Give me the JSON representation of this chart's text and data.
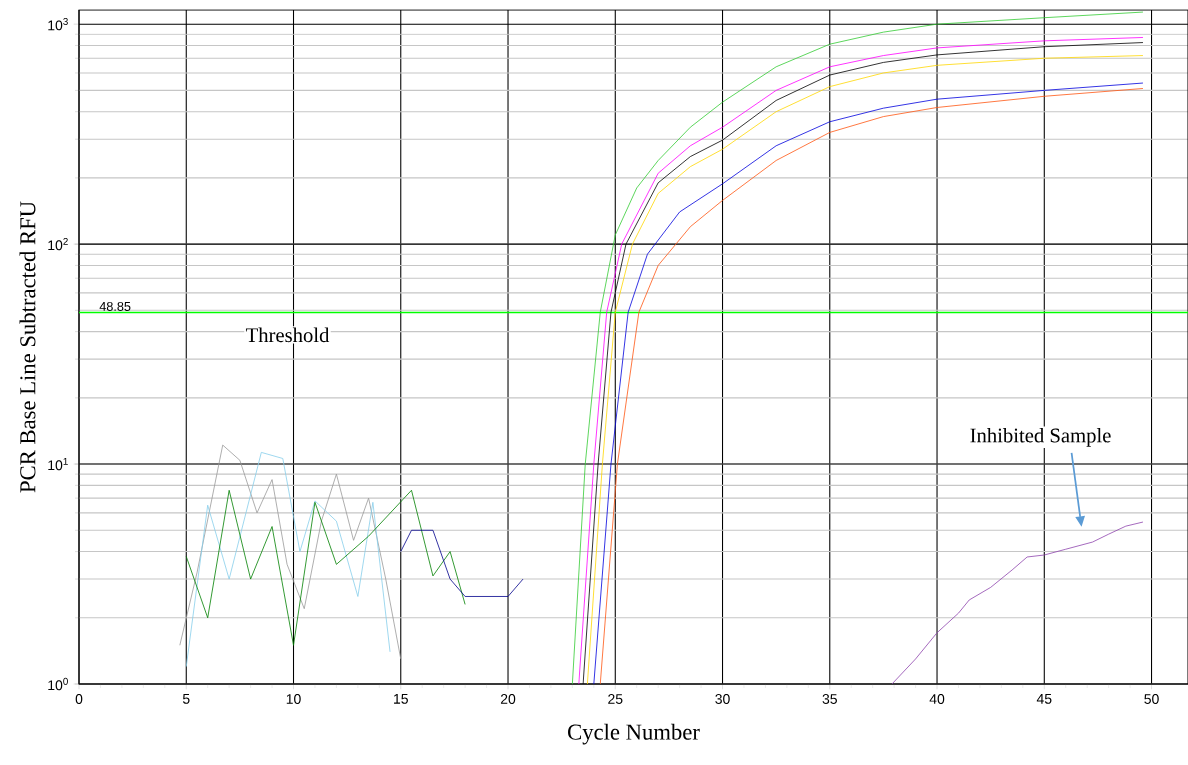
{
  "chart_data": {
    "type": "line",
    "xlabel": "Cycle Number",
    "ylabel": "PCR Base Line Subtracted RFU",
    "log": "y",
    "grid": true,
    "xlim": [
      0,
      51.7
    ],
    "ylim": [
      1,
      1160
    ],
    "xticks": [
      0,
      5,
      10,
      15,
      20,
      25,
      30,
      35,
      40,
      45,
      50
    ],
    "yticks": [
      {
        "value": 1,
        "label": "10$^{0}$"
      },
      {
        "value": 10,
        "label": "10$^{1}$"
      },
      {
        "value": 100,
        "label": "10$^{2}$"
      },
      {
        "value": 1000,
        "label": "10$^{3}$"
      }
    ],
    "ref_lines": [
      {
        "axis": "y",
        "value": 48.85,
        "label": "48.85",
        "color": "#00ff00"
      }
    ],
    "annotations": [
      "Threshold",
      "Inhibited Sample"
    ],
    "series": [
      {
        "color": "#33cc33",
        "x": [
          23.0,
          23.6,
          24.3,
          25,
          26,
          27,
          28.5,
          30,
          32.5,
          35,
          37.5,
          40,
          45,
          49.6
        ],
        "values": [
          1,
          10,
          49,
          110,
          180,
          240,
          340,
          442,
          640,
          811,
          920,
          1000,
          1070,
          1135
        ]
      },
      {
        "color": "#000000",
        "x": [
          23.5,
          24.2,
          24.8,
          25.5,
          27,
          28.5,
          30,
          32.5,
          35,
          37.5,
          40,
          45,
          49.6
        ],
        "values": [
          1,
          10,
          49,
          100,
          190,
          250,
          297,
          450,
          587,
          670,
          725,
          790,
          825
        ]
      },
      {
        "color": "#ff00ff",
        "x": [
          23.3,
          24.0,
          24.6,
          25.3,
          27,
          28.5,
          30,
          32.5,
          35,
          37.5,
          40,
          45,
          49.6
        ],
        "values": [
          1,
          10,
          49,
          100,
          210,
          280,
          340,
          500,
          640,
          720,
          780,
          840,
          870
        ]
      },
      {
        "color": "#ffd700",
        "x": [
          23.7,
          24.4,
          25.0,
          25.8,
          27,
          28.5,
          30,
          32.5,
          35,
          37.5,
          40,
          45,
          49.6
        ],
        "values": [
          1,
          10,
          49,
          100,
          170,
          225,
          270,
          400,
          520,
          600,
          650,
          700,
          720
        ]
      },
      {
        "color": "#0000dd",
        "x": [
          24.0,
          24.8,
          25.6,
          26.5,
          28,
          30,
          32.5,
          35,
          37.5,
          40,
          45,
          49.6
        ],
        "values": [
          1,
          10,
          49,
          90,
          140,
          188,
          280,
          360,
          415,
          456,
          500,
          540
        ]
      },
      {
        "color": "#ff5511",
        "x": [
          24.3,
          25.1,
          26.1,
          27,
          28.5,
          30,
          32.5,
          35,
          37.5,
          40,
          45,
          49.6
        ],
        "values": [
          1,
          10,
          49,
          80,
          120,
          158,
          240,
          322,
          380,
          418,
          470,
          510
        ]
      },
      {
        "color": "#999999",
        "x": [
          4.7,
          5.5,
          6.7,
          7.5,
          8.3,
          9.0,
          9.7,
          10.5,
          11.3,
          12.0,
          12.8,
          13.5,
          14.3,
          15.0
        ],
        "values": [
          1.5,
          3.2,
          12.2,
          10.4,
          6.0,
          8.5,
          3.5,
          2.2,
          5.5,
          9.0,
          4.5,
          7.0,
          3.0,
          1.3
        ]
      },
      {
        "color": "#87ceeb",
        "x": [
          5.0,
          6.0,
          7.0,
          8.5,
          9.5,
          10.3,
          11.0,
          12.0,
          13.0,
          13.7,
          14.5
        ],
        "values": [
          1.2,
          6.5,
          3.0,
          11.3,
          10.6,
          4.0,
          6.8,
          5.5,
          2.5,
          6.7,
          1.4
        ]
      },
      {
        "color": "#008000",
        "x": [
          5.0,
          6.0,
          7.0,
          8.0,
          9.0,
          10.0,
          11.0,
          12.0,
          13.5,
          15.5,
          16.5,
          17.3,
          18.0
        ],
        "values": [
          3.8,
          2.0,
          7.6,
          3.0,
          5.2,
          1.5,
          6.7,
          3.5,
          4.7,
          7.6,
          3.1,
          4.0,
          2.3
        ]
      },
      {
        "color": "#00008b",
        "x": [
          15.0,
          15.5,
          16.5,
          17.3,
          18.0,
          19.0,
          20.0,
          20.7
        ],
        "values": [
          4.0,
          5.0,
          5.0,
          3.0,
          2.5,
          2.5,
          2.5,
          3.0
        ]
      },
      {
        "color": "#8e44ad",
        "x": [
          37.9,
          39.0,
          40.0,
          41.0,
          41.5,
          42.5,
          43.5,
          44.2,
          45.0,
          46.0,
          47.25,
          48.0,
          48.8,
          49.6
        ],
        "values": [
          1.0,
          1.3,
          1.71,
          2.1,
          2.41,
          2.75,
          3.3,
          3.78,
          3.86,
          4.1,
          4.42,
          4.8,
          5.22,
          5.45
        ]
      }
    ]
  }
}
